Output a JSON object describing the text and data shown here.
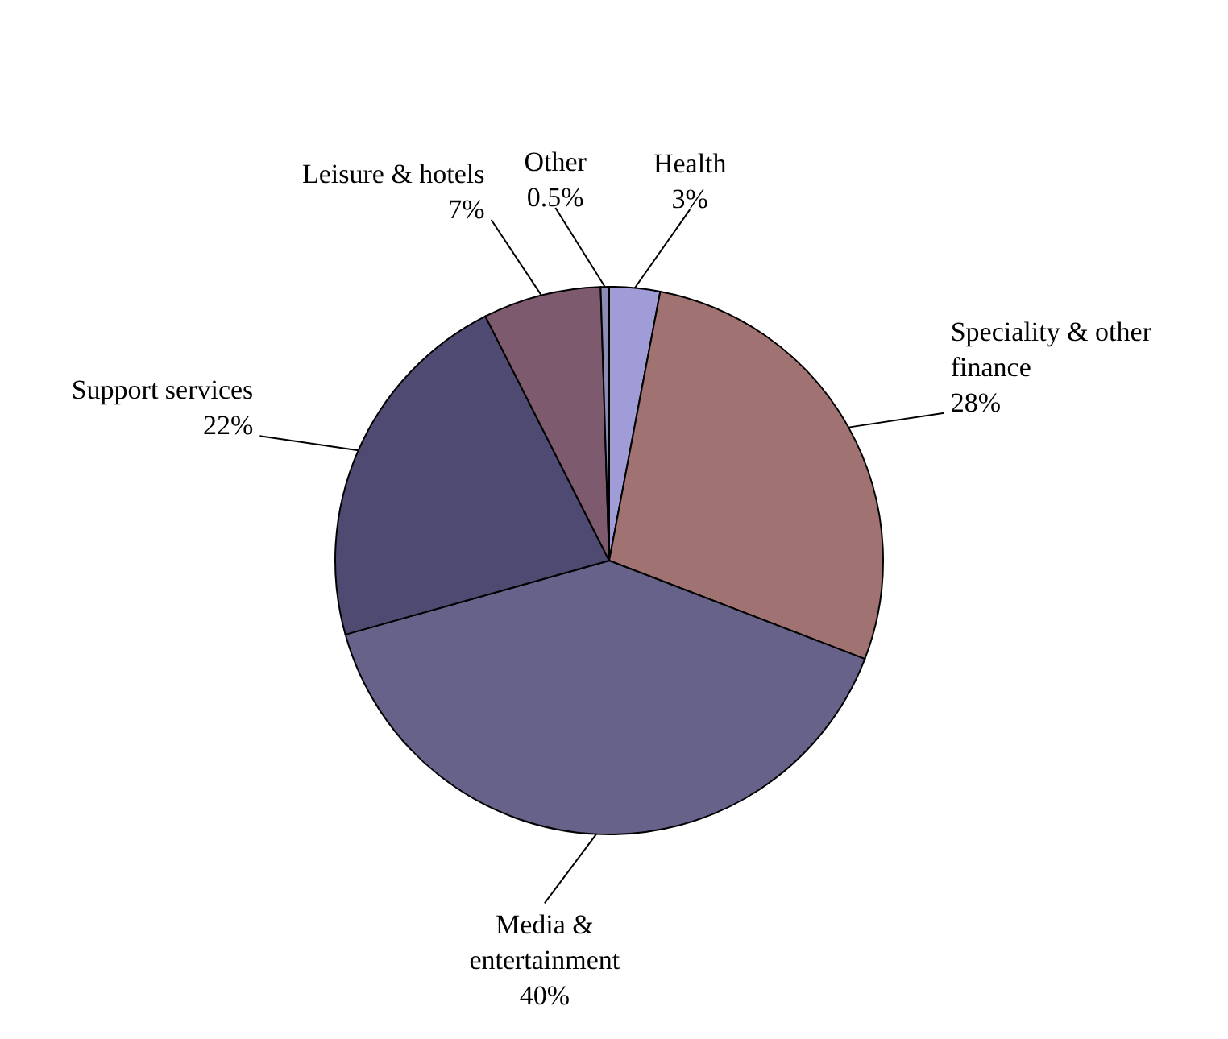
{
  "chart_data": {
    "type": "pie",
    "categories": [
      "Health",
      "Speciality & other finance",
      "Media & entertainment",
      "Support services",
      "Leisure & hotels",
      "Other"
    ],
    "values": [
      3,
      28,
      40,
      22,
      7,
      0.5
    ],
    "value_labels": [
      "3%",
      "28%",
      "40%",
      "22%",
      "7%",
      "0.5%"
    ],
    "colors": [
      "#a09cd8",
      "#a07272",
      "#66628a",
      "#4e4a72",
      "#7e5a6e",
      "#8c8cb4"
    ]
  }
}
